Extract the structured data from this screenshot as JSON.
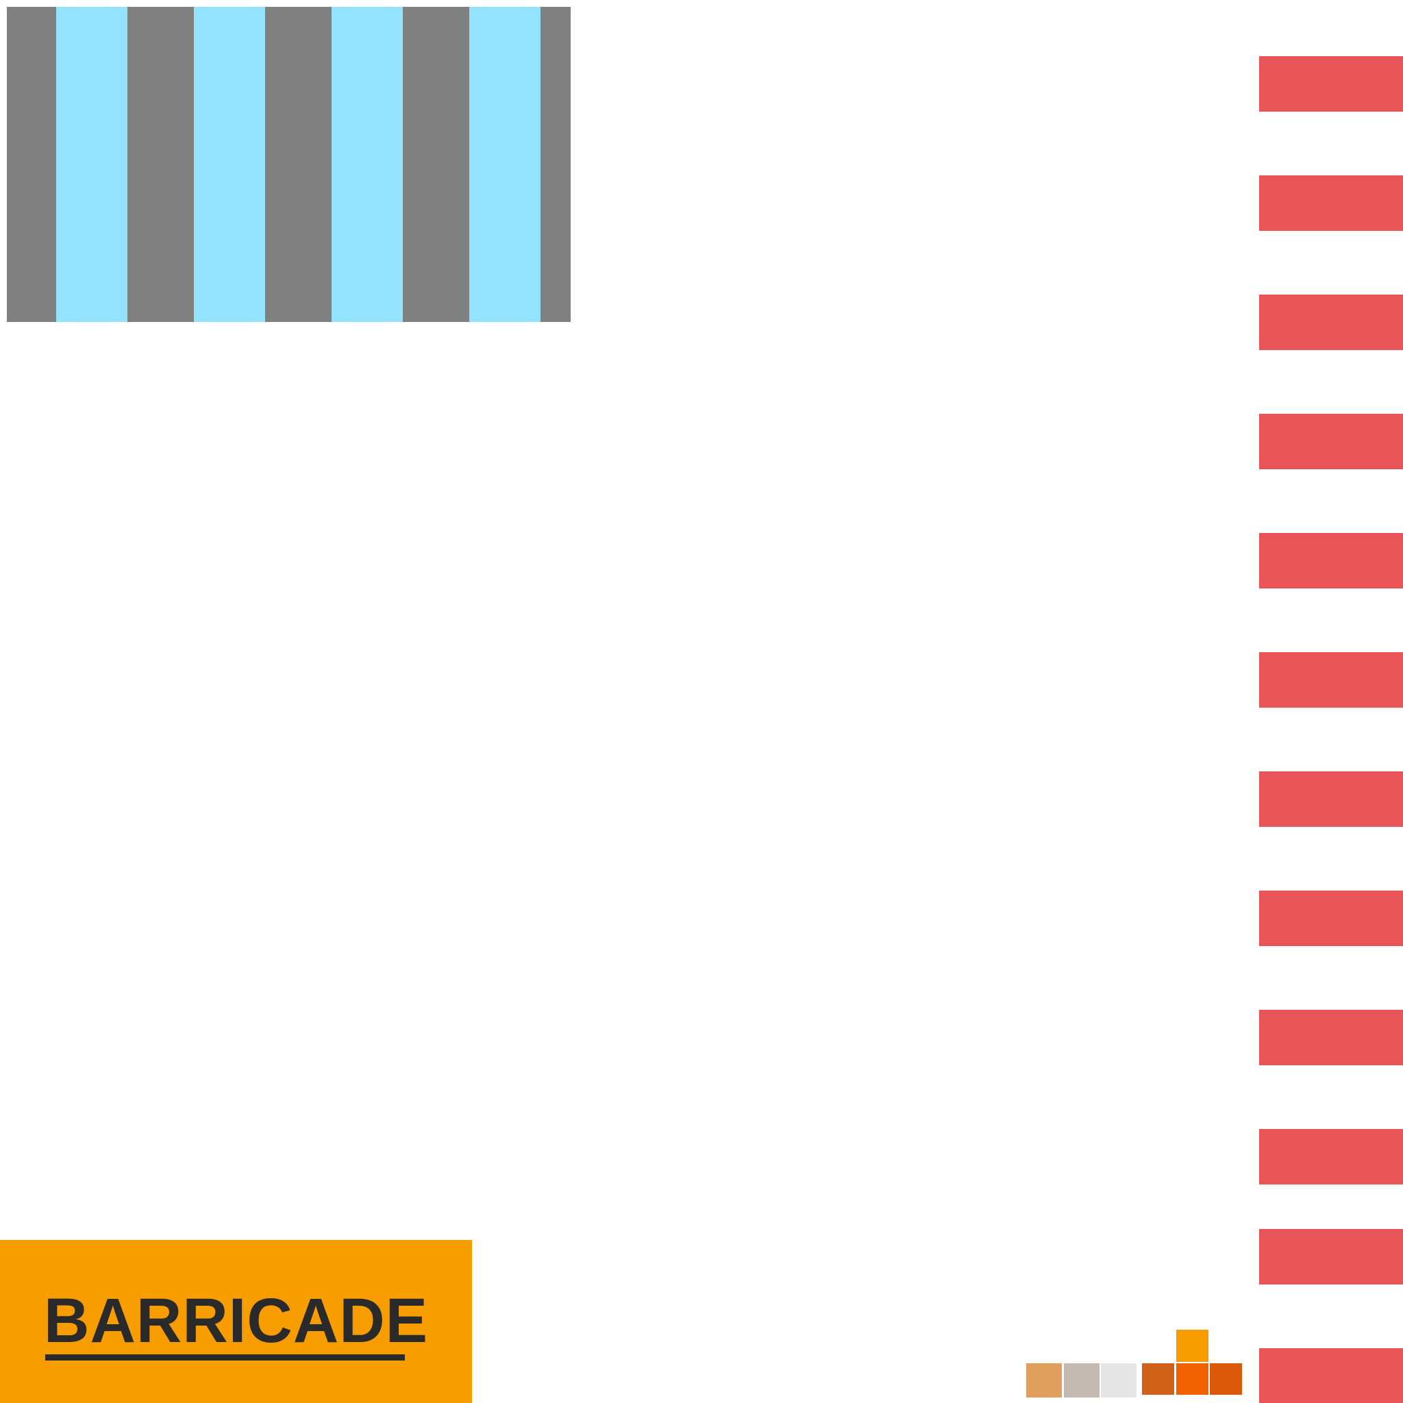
{
  "sign": {
    "title": "BARRICADE",
    "background_color": "#f79d00",
    "text_color": "#2a2a2a"
  },
  "stripe_panel": {
    "colors": [
      "#808080",
      "#93e3ff",
      "#808080",
      "#93e3ff",
      "#808080",
      "#93e3ff",
      "#808080",
      "#93e3ff",
      "#808080"
    ]
  },
  "rail": {
    "color": "#e85457",
    "dash_count": 12
  },
  "palette": {
    "swatches": [
      {
        "name": "tan",
        "color": "#e09f5c"
      },
      {
        "name": "taupe",
        "color": "#c5bab1"
      },
      {
        "name": "light-gray",
        "color": "#e6e6e6"
      },
      {
        "name": "burnt-orange",
        "color": "#d0621a"
      },
      {
        "name": "bright-orange",
        "color": "#f26100"
      },
      {
        "name": "dark-orange",
        "color": "#db5a0a"
      },
      {
        "name": "amber",
        "color": "#f79d00"
      }
    ]
  }
}
